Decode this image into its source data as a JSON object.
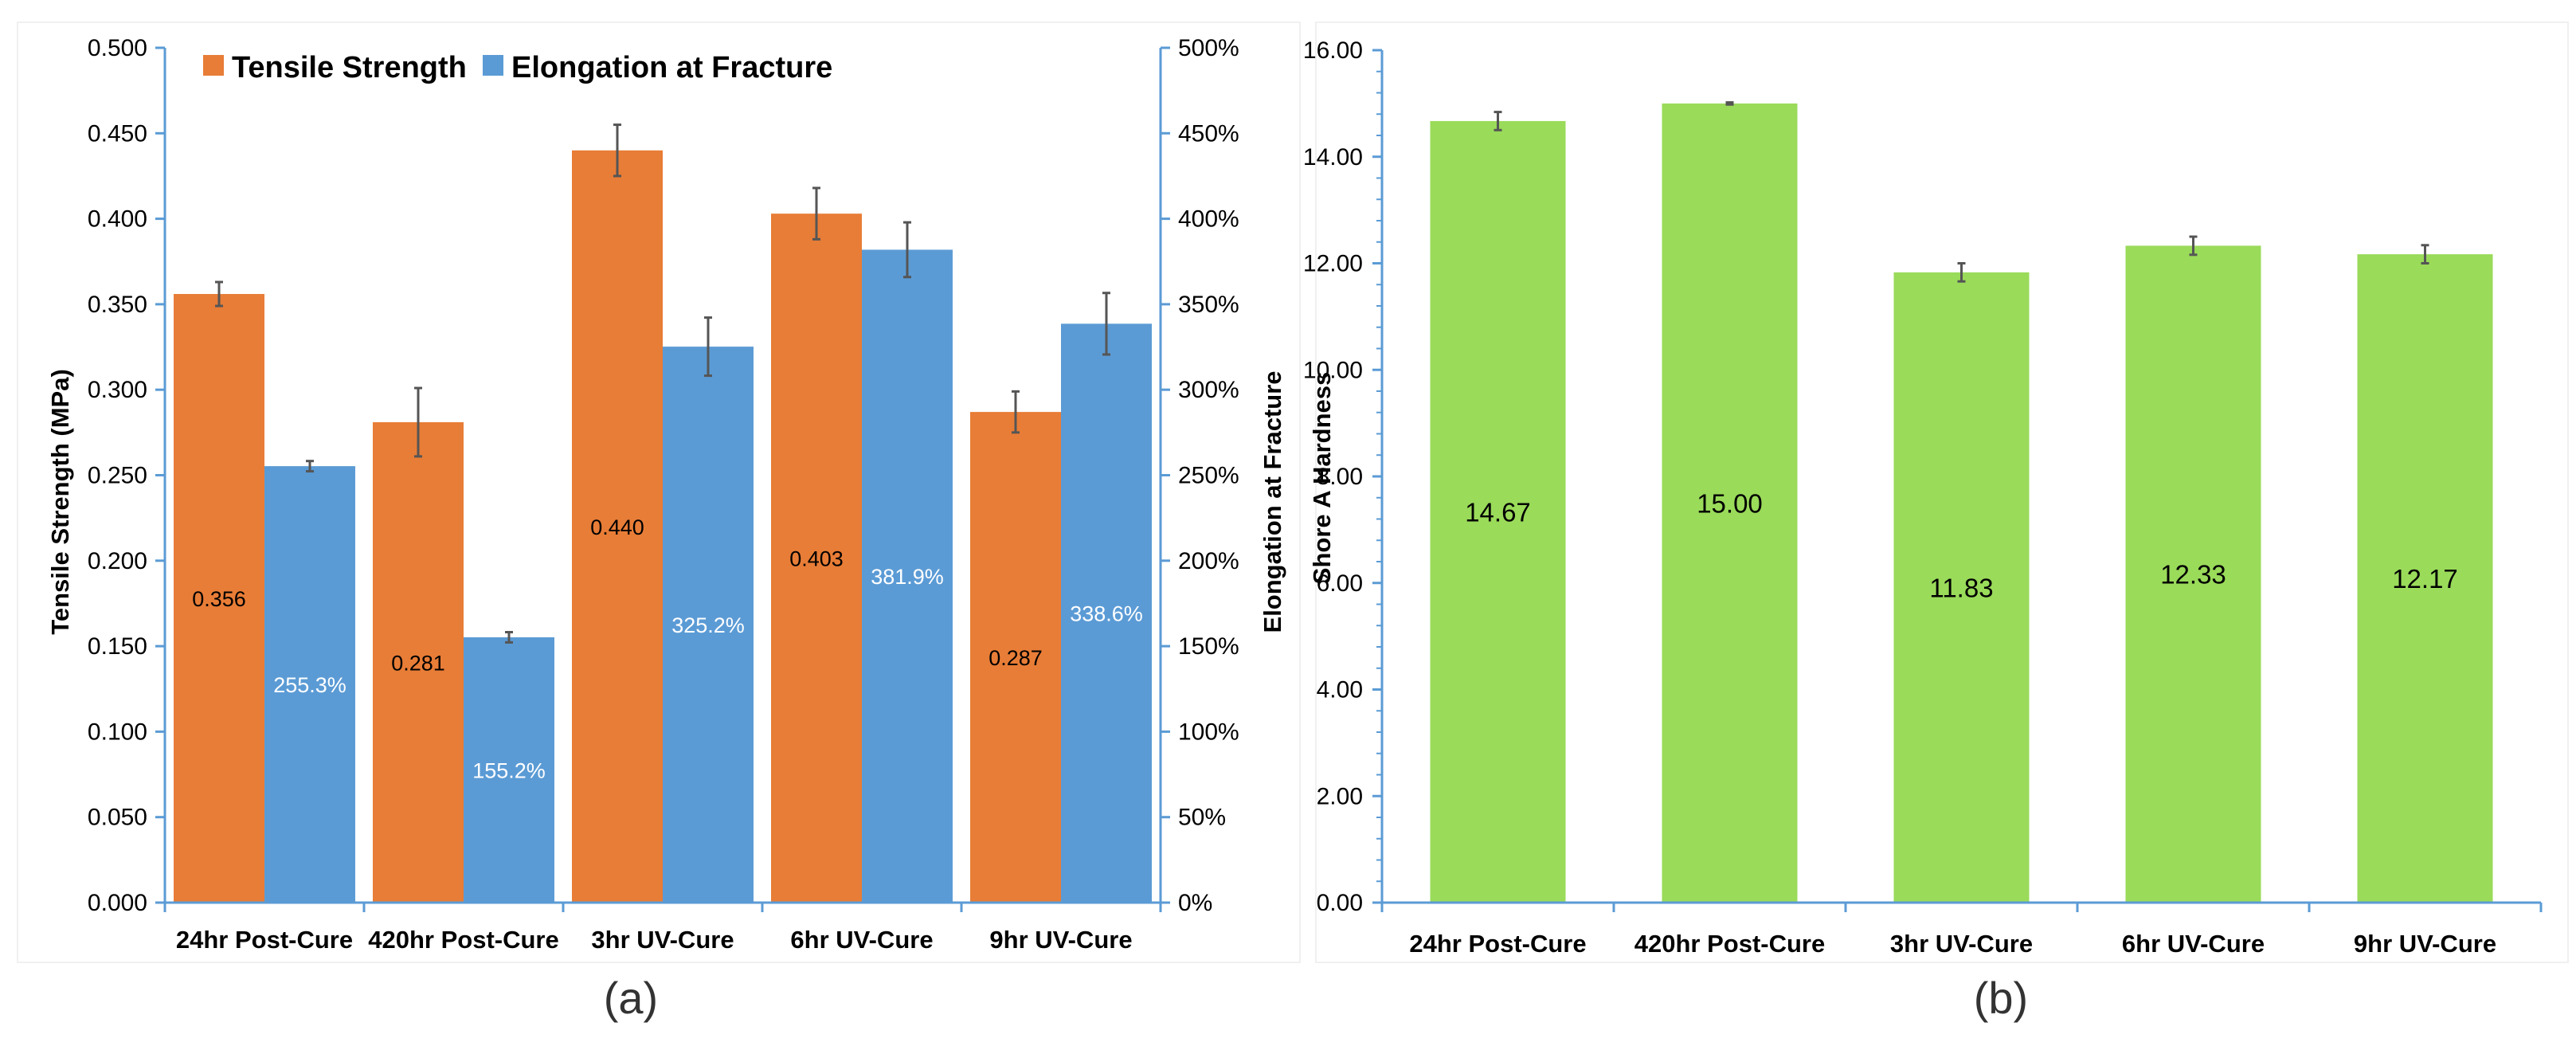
{
  "chart_data": [
    {
      "panel_label": "(a)",
      "type": "bar",
      "categories": [
        "24hr Post-Cure",
        "420hr Post-Cure",
        "3hr UV-Cure",
        "6hr UV-Cure",
        "9hr UV-Cure"
      ],
      "series": [
        {
          "name": "Tensile Strength",
          "axis": "left",
          "color": "#E87D37",
          "values": [
            0.356,
            0.281,
            0.44,
            0.403,
            0.287
          ],
          "errors": [
            0.007,
            0.02,
            0.015,
            0.015,
            0.012
          ],
          "labels": [
            "0.356",
            "0.281",
            "0.440",
            "0.403",
            "0.287"
          ]
        },
        {
          "name": "Elongation at Fracture",
          "axis": "right",
          "color": "#5B9BD5",
          "values": [
            255.3,
            155.2,
            325.2,
            381.9,
            338.6
          ],
          "errors": [
            3,
            3,
            17,
            16,
            18
          ],
          "labels": [
            "255.3%",
            "155.2%",
            "325.2%",
            "381.9%",
            "338.6%"
          ]
        }
      ],
      "ylabel": "Tensile Strength (MPa)",
      "ylabel_right": "Elongation at Fracture",
      "ylim": [
        0,
        0.5
      ],
      "ylim_right": [
        0,
        500
      ],
      "yticks": [
        "0.000",
        "0.050",
        "0.100",
        "0.150",
        "0.200",
        "0.250",
        "0.300",
        "0.350",
        "0.400",
        "0.450",
        "0.500"
      ],
      "yticks_right": [
        "0%",
        "50%",
        "100%",
        "150%",
        "200%",
        "250%",
        "300%",
        "350%",
        "400%",
        "450%",
        "500%"
      ],
      "legend": "top-left",
      "grid": false
    },
    {
      "panel_label": "(b)",
      "type": "bar",
      "categories": [
        "24hr Post-Cure",
        "420hr Post-Cure",
        "3hr UV-Cure",
        "6hr UV-Cure",
        "9hr UV-Cure"
      ],
      "series": [
        {
          "name": "Shore A Hardness",
          "color": "#9ADB5A",
          "values": [
            14.67,
            15.0,
            11.83,
            12.33,
            12.17
          ],
          "errors": [
            0.17,
            0.02,
            0.17,
            0.17,
            0.17
          ],
          "labels": [
            "14.67",
            "15.00",
            "11.83",
            "12.33",
            "12.17"
          ]
        }
      ],
      "ylabel": "Shore A Hardness",
      "ylim": [
        0,
        16
      ],
      "yticks": [
        "0.00",
        "2.00",
        "4.00",
        "6.00",
        "8.00",
        "10.00",
        "12.00",
        "14.00",
        "16.00"
      ],
      "legend": "none",
      "grid": false
    }
  ]
}
